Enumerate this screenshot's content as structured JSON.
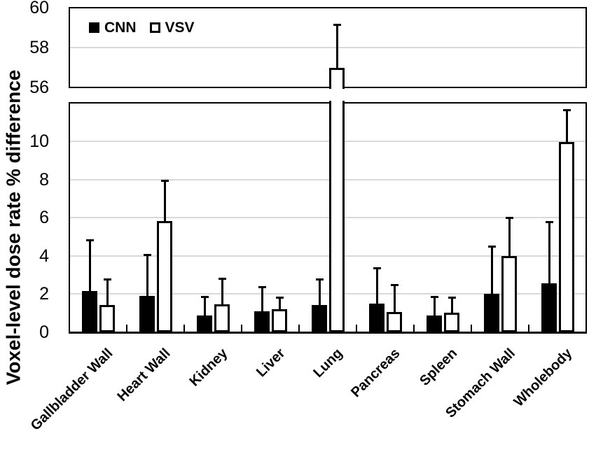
{
  "chart_data": {
    "type": "bar",
    "title": "",
    "ylabel": "Voxel-level dose rate % difference",
    "xlabel": "",
    "categories": [
      "Gallbladder Wall",
      "Heart Wall",
      "Kidney",
      "Liver",
      "Lung",
      "Pancreas",
      "Spleen",
      "Stomach Wall",
      "Wholebody"
    ],
    "series": [
      {
        "name": "CNN",
        "fill": "#000000",
        "values": [
          2.15,
          1.9,
          0.85,
          1.1,
          1.4,
          1.5,
          0.85,
          2.0,
          2.55
        ],
        "error_tops": [
          4.85,
          4.1,
          1.9,
          2.4,
          2.8,
          3.4,
          1.9,
          4.55,
          5.8
        ]
      },
      {
        "name": "VSV",
        "fill": "#ffffff",
        "values": [
          1.4,
          5.8,
          1.45,
          1.2,
          57.0,
          1.05,
          1.0,
          4.0,
          9.95
        ],
        "error_tops": [
          2.8,
          8.0,
          2.85,
          1.85,
          59.2,
          2.5,
          1.85,
          6.05,
          11.7
        ]
      }
    ],
    "legend": {
      "items": [
        "CNN",
        "VSV"
      ],
      "position": "top-left-inside"
    },
    "axes": {
      "broken_y_axis": true,
      "top_panel": {
        "ylim": [
          56,
          60
        ],
        "ticks": [
          56,
          58,
          60
        ]
      },
      "bottom_panel": {
        "ylim": [
          0,
          12
        ],
        "ticks": [
          0,
          2,
          4,
          6,
          8,
          10
        ]
      },
      "grid": true,
      "gridline_color": "#d9d9d9"
    },
    "colors": {
      "bar_outline": "#000000",
      "axis": "#000000",
      "text": "#000000",
      "background": "#ffffff"
    }
  }
}
